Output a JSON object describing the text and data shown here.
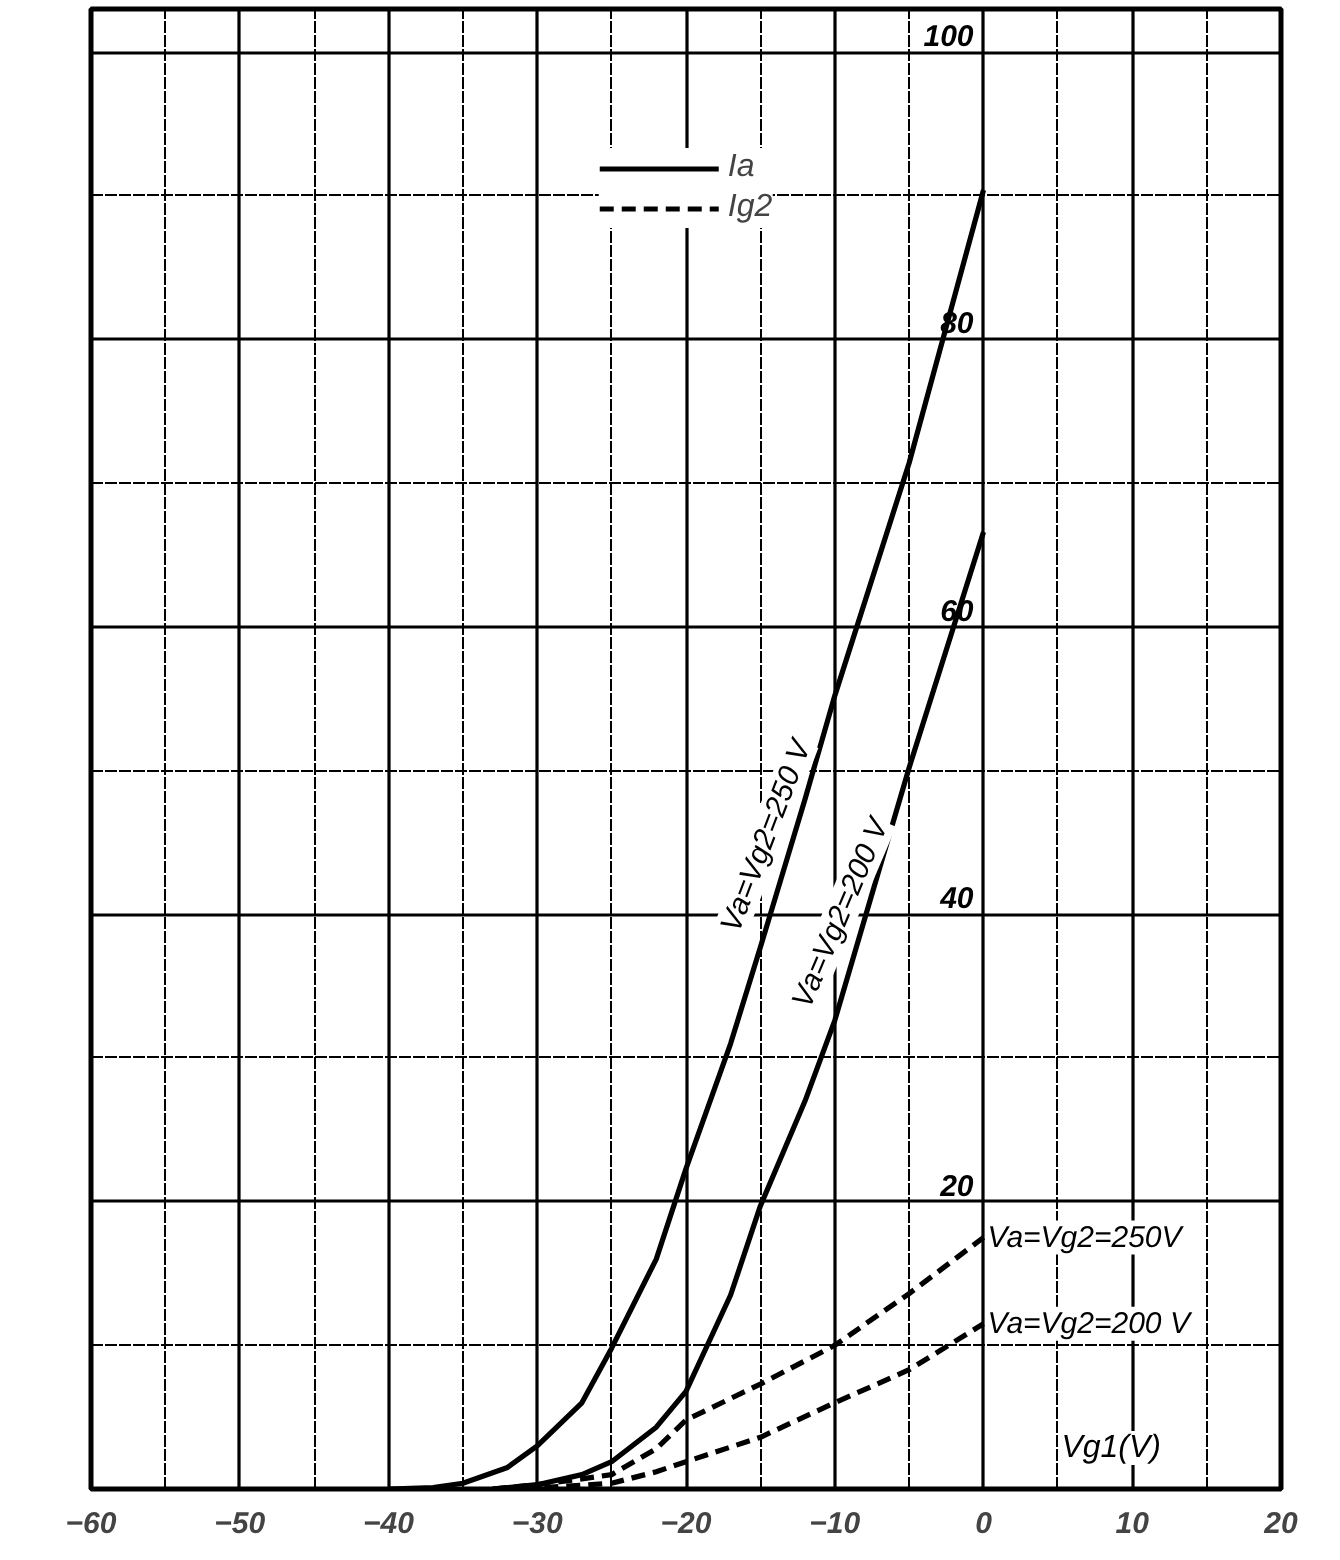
{
  "chart_data": {
    "type": "line",
    "xlabel": "Vg1(V)",
    "xlim": [
      -60,
      20
    ],
    "xticks": [
      -60,
      -50,
      -40,
      -30,
      -20,
      -10,
      0,
      10,
      20
    ],
    "ylim": [
      0,
      103
    ],
    "yticks": [
      20,
      40,
      60,
      80,
      100
    ],
    "grid": true,
    "legend": "top",
    "marker": "none",
    "series": [
      {
        "name": "Ia",
        "color": "#000000",
        "line_style": "solid",
        "x": [
          -40,
          -37,
          -35,
          -32,
          -30,
          -27,
          -25,
          -22,
          -20,
          -17,
          -15,
          -12,
          -10,
          -5,
          0
        ],
        "values": [
          0,
          0.1,
          0.4,
          1.5,
          3.0,
          6.0,
          9.8,
          16,
          22.3,
          31,
          37.7,
          48,
          55.2,
          71.4,
          90.4
        ]
      },
      {
        "color": "#000000",
        "line_style": "solid",
        "x": [
          -33,
          -30,
          -27,
          -25,
          -22,
          -20,
          -17,
          -15,
          -12,
          -10,
          -5,
          0
        ],
        "values": [
          0,
          0.3,
          1.0,
          1.9,
          4.3,
          6.8,
          13.5,
          19.7,
          27,
          32.6,
          50.2,
          66.6
        ]
      },
      {
        "name": "Ig2",
        "color": "#000000",
        "line_style": "dashed",
        "x": [
          -33,
          -30,
          -27,
          -25,
          -22,
          -20,
          -15,
          -10,
          -5,
          0
        ],
        "values": [
          0,
          0.3,
          0.7,
          1.0,
          2.8,
          4.8,
          7.3,
          10,
          13.6,
          17.5
        ]
      },
      {
        "color": "#000000",
        "line_style": "dashed",
        "x": [
          -31,
          -28,
          -25,
          -22,
          -20,
          -15,
          -10,
          -5,
          0
        ],
        "values": [
          0,
          0.2,
          0.4,
          1.2,
          1.9,
          3.6,
          6,
          8.3,
          11.5
        ]
      }
    ],
    "annotations": [
      {
        "text": "Va=Vg2=250 V",
        "x": -13,
        "y": 45
      },
      {
        "text": "Va=Vg2=200 V",
        "x": -8,
        "y": 39.6
      },
      {
        "text": "Va=Vg2=250V",
        "x": 0,
        "y": 17.5
      },
      {
        "text": "Va=Vg2=200 V",
        "x": 0,
        "y": 11.5
      }
    ]
  }
}
